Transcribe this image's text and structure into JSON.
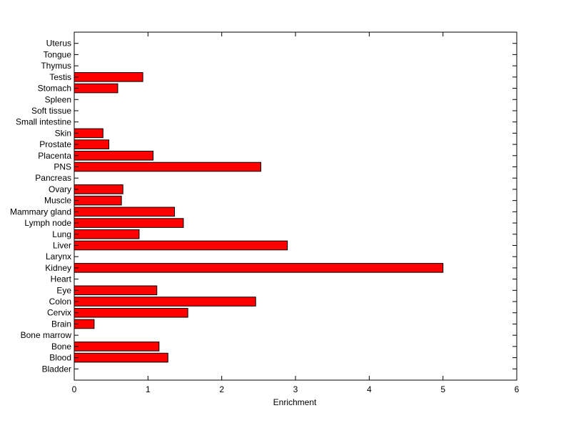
{
  "chart_data": {
    "type": "bar",
    "orientation": "horizontal",
    "title": "",
    "xlabel": "Enrichment",
    "ylabel": "",
    "xlim": [
      0,
      6
    ],
    "xticks": [
      0,
      1,
      2,
      3,
      4,
      5,
      6
    ],
    "grid": false,
    "bar_color": "#ff0000",
    "categories": [
      "Bladder",
      "Blood",
      "Bone",
      "Bone marrow",
      "Brain",
      "Cervix",
      "Colon",
      "Eye",
      "Heart",
      "Kidney",
      "Larynx",
      "Liver",
      "Lung",
      "Lymph node",
      "Mammary gland",
      "Muscle",
      "Ovary",
      "Pancreas",
      "PNS",
      "Placenta",
      "Prostate",
      "Skin",
      "Small intestine",
      "Soft tissue",
      "Spleen",
      "Stomach",
      "Testis",
      "Thymus",
      "Tongue",
      "Uterus"
    ],
    "values": [
      0,
      1.27,
      1.15,
      0,
      0.27,
      1.54,
      2.46,
      1.12,
      0,
      5.0,
      0,
      2.89,
      0.88,
      1.48,
      1.36,
      0.64,
      0.66,
      0,
      2.53,
      1.07,
      0.47,
      0.39,
      0,
      0,
      0,
      0.59,
      0.93,
      0,
      0,
      0
    ]
  }
}
